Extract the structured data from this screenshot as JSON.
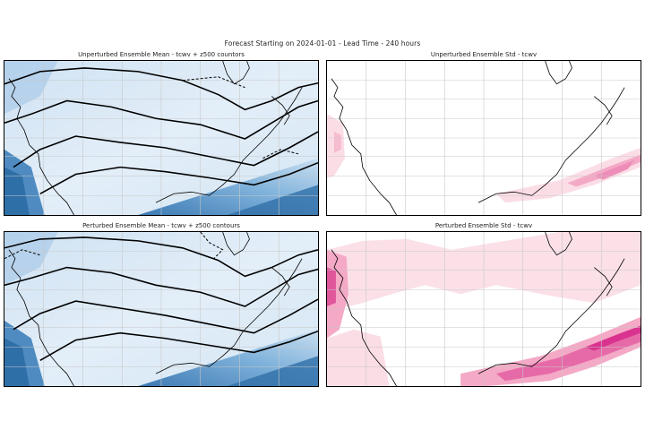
{
  "figure": {
    "suptitle": "Forecast Starting on 2024-01-01 - Lead Time - 240 hours"
  },
  "panels": [
    {
      "id": "unperturbed-mean",
      "title": "Unperturbed Ensemble Mean - tcwv + z500 countors",
      "field": "tcwv",
      "colormap": "blues",
      "contours": "z500"
    },
    {
      "id": "unperturbed-std",
      "title": "Unperturbed Ensemble Std - tcwv",
      "field": "tcwv",
      "colormap": "pinks",
      "contours": ""
    },
    {
      "id": "perturbed-mean",
      "title": "Perturbed Ensemble Mean - tcwv + z500 contours",
      "field": "tcwv",
      "colormap": "blues",
      "contours": "z500"
    },
    {
      "id": "perturbed-std",
      "title": "Perturbed Ensemble Std - tcwv",
      "field": "tcwv",
      "colormap": "pinks",
      "contours": ""
    }
  ],
  "colors": {
    "mean_high": "#2f6fa8",
    "mean_mid": "#8cbbe0",
    "mean_low": "#e4eff8",
    "std_high": "#d9338f",
    "std_mid": "#ee8db8",
    "std_low": "#fbdde6",
    "coastline": "#000000",
    "gridline": "#c8c8c8"
  },
  "map": {
    "region": "North America",
    "gridlines": true
  }
}
